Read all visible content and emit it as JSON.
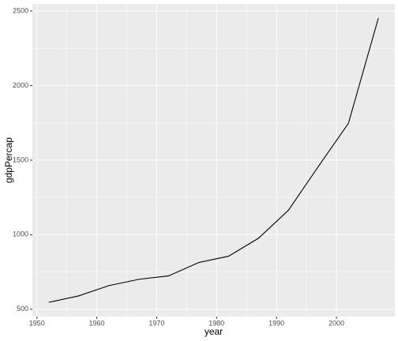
{
  "chart_data": {
    "type": "line",
    "x_label": "year",
    "y_label": "gdpPercap",
    "x": [
      1952,
      1957,
      1962,
      1967,
      1972,
      1977,
      1982,
      1987,
      1992,
      1997,
      2002,
      2007
    ],
    "values": [
      546.57,
      590.06,
      658.35,
      700.77,
      724.03,
      813.34,
      855.72,
      976.51,
      1164.41,
      1458.82,
      1746.77,
      2452.21
    ],
    "color": "#000000",
    "xlim": [
      1949.25,
      2009.75
    ],
    "xticks": [
      1950,
      1960,
      1970,
      1980,
      1990,
      2000
    ],
    "ylim": [
      451.3,
      2547.5
    ],
    "yticks": [
      500,
      1000,
      1500,
      2000,
      2500
    ],
    "grid": true
  }
}
